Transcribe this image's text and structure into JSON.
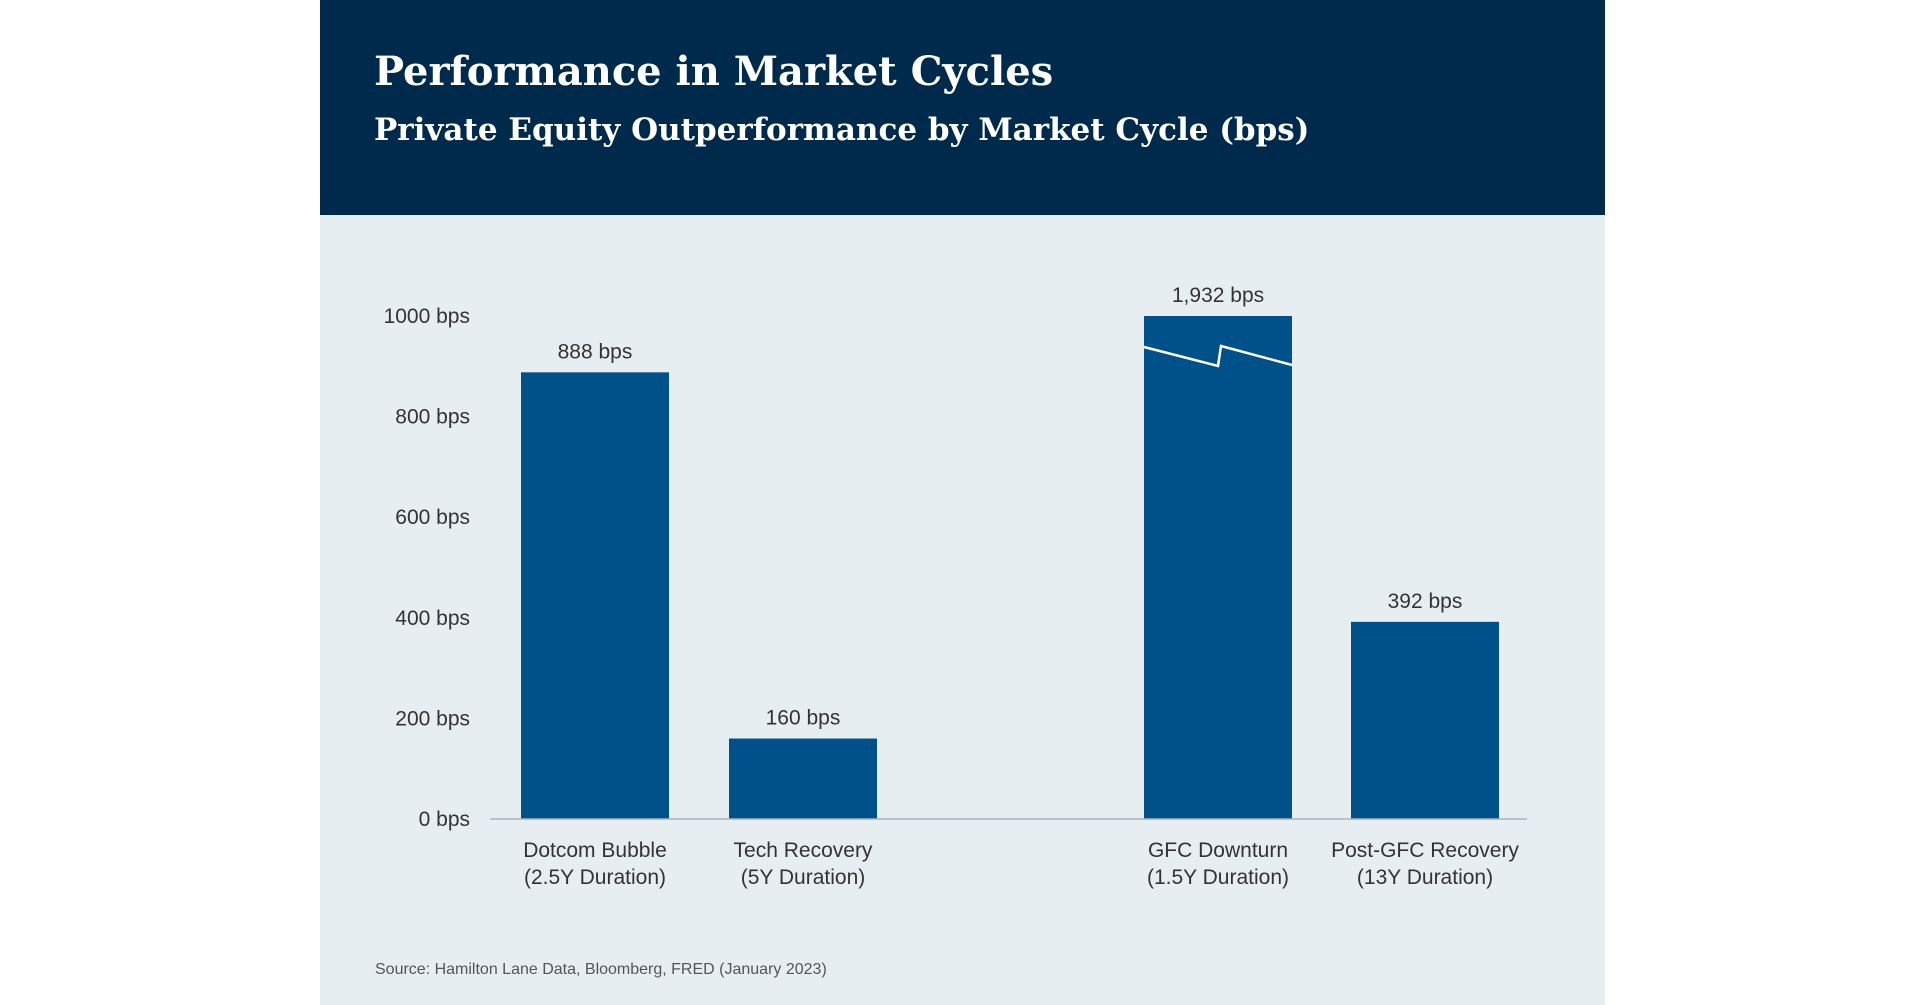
{
  "header": {
    "title": "Performance in Market Cycles",
    "subtitle": "Private Equity Outperformance by Market Cycle (bps)"
  },
  "chart_data": {
    "type": "bar",
    "title": "Performance in Market Cycles",
    "subtitle": "Private Equity Outperformance by Market Cycle (bps)",
    "xlabel": "",
    "ylabel": "",
    "ylim": [
      0,
      1000
    ],
    "yticks": [
      0,
      200,
      400,
      600,
      800,
      1000
    ],
    "ytick_suffix": " bps",
    "grid": false,
    "legend": "none",
    "bar_color": "#00508a",
    "categories": [
      [
        "Dotcom Bubble",
        "(2.5Y Duration)"
      ],
      [
        "Tech Recovery",
        "(5Y Duration)"
      ],
      [
        "GFC Downturn",
        "(1.5Y Duration)"
      ],
      [
        "Post-GFC Recovery",
        "(13Y Duration)"
      ]
    ],
    "values": [
      888,
      160,
      1932,
      392
    ],
    "value_labels": [
      "888 bps",
      "160 bps",
      "1,932 bps",
      "392 bps"
    ],
    "axis_break": {
      "category_index": 2,
      "note": "bar truncated at axis maximum"
    }
  },
  "footer": {
    "source": "Source: Hamilton Lane Data, Bloomberg, FRED (January 2023)"
  }
}
